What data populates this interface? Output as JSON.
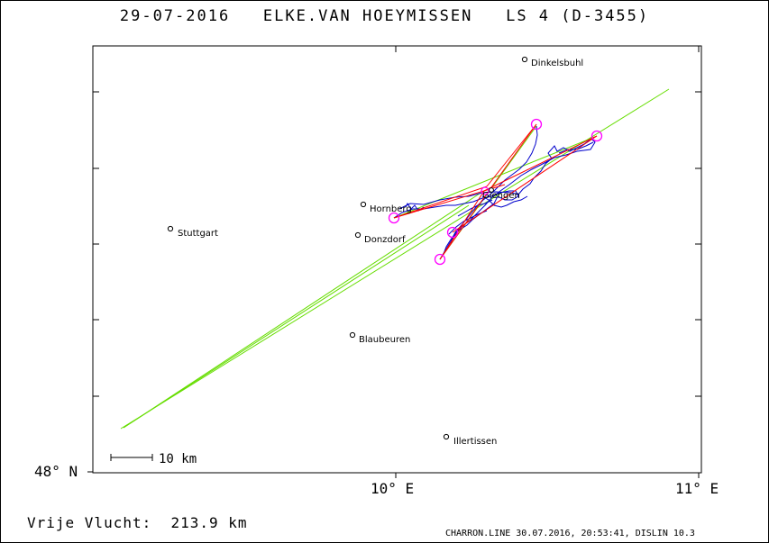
{
  "header": {
    "title": "29-07-2016   ELKE.VAN HOEYMISSEN   LS 4 (D-3455)"
  },
  "axes": {
    "lat_label": "48° N",
    "lon_labels": [
      "10° E",
      "11° E"
    ]
  },
  "map": {
    "scale_label": "10 km",
    "towns": [
      {
        "name": "Dinkelsbuhl"
      },
      {
        "name": "Stuttgart"
      },
      {
        "name": "Hornberg"
      },
      {
        "name": "Donzdorf"
      },
      {
        "name": "Blaubeuren"
      },
      {
        "name": "Illertissen"
      },
      {
        "name": "Giengen"
      }
    ],
    "colors": {
      "track": "#0000cc",
      "leg": "#ff0000",
      "line_green": "#66dd00",
      "turnpoint": "#ff00ff"
    }
  },
  "footer": {
    "left": "Vrije Vlucht:  213.9 km",
    "right": "CHARRON.LINE 30.07.2016, 20:53:41, DISLIN 10.3"
  }
}
